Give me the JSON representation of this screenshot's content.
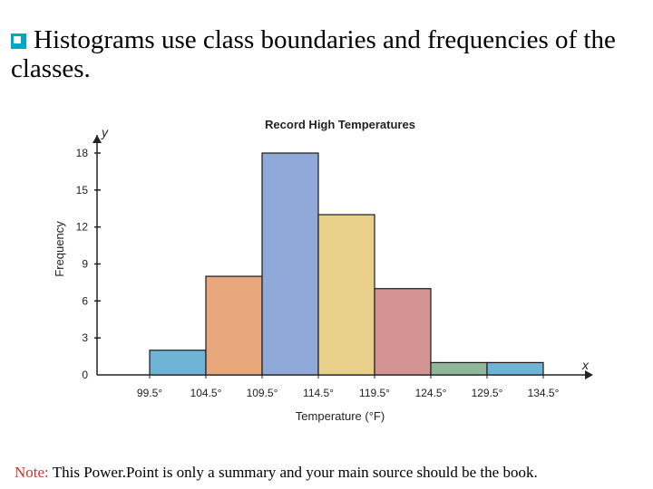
{
  "slide": {
    "heading": "Histograms use class boundaries and frequencies of the classes.",
    "bullet_icon": "square-bullet-icon",
    "bullet_color": "#00a6c8",
    "note_label": "Note:",
    "note_text": " This Power.Point is only a summary and your main source should be the book."
  },
  "chart_data": {
    "type": "bar",
    "title": "Record High Temperatures",
    "xlabel": "Temperature (°F)",
    "ylabel": "Frequency",
    "x_axis_letter": "x",
    "y_axis_letter": "y",
    "boundaries": [
      "99.5°",
      "104.5°",
      "109.5°",
      "114.5°",
      "119.5°",
      "124.5°",
      "129.5°",
      "134.5°"
    ],
    "values": [
      2,
      8,
      18,
      13,
      7,
      1,
      1
    ],
    "colors": [
      "#6fb3d6",
      "#e8a87c",
      "#8fa9d8",
      "#e8cf8a",
      "#d49494",
      "#8fb89a",
      "#6fb3d6"
    ],
    "yticks": [
      0,
      3,
      6,
      9,
      12,
      15,
      18
    ],
    "ylim": [
      0,
      19
    ],
    "grid": false,
    "legend": "none"
  }
}
